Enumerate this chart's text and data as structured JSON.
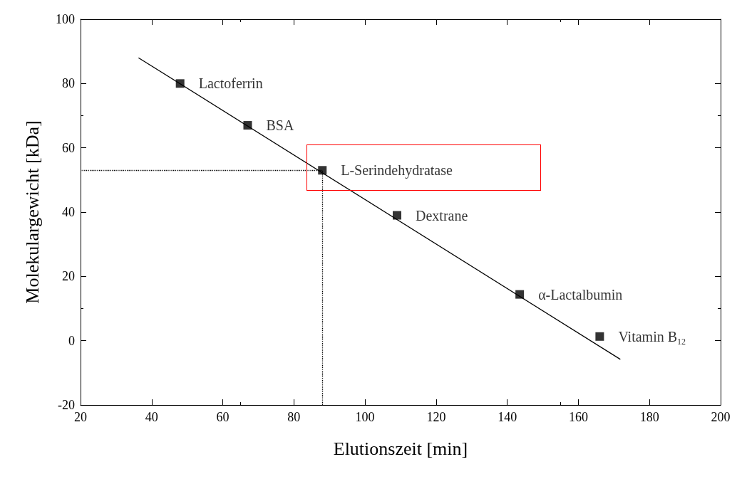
{
  "chart_data": {
    "type": "scatter",
    "xlabel": "Elutionszeit [min]",
    "ylabel": "Molekulargewicht [kDa]",
    "xlim": [
      20,
      200
    ],
    "xticks": [
      20,
      40,
      60,
      80,
      100,
      120,
      140,
      160,
      180,
      200
    ],
    "ylim": [
      -20,
      100
    ],
    "yticks": [
      -20,
      0,
      20,
      40,
      60,
      80,
      100
    ],
    "grid": false,
    "marker": "square",
    "series": [
      {
        "color": "#000000",
        "x": [
          48,
          67,
          88,
          109,
          143.5,
          166
        ],
        "values": [
          80,
          67,
          53,
          39,
          14.4,
          1.3
        ]
      },
      {
        "type": "line",
        "color": "#000000",
        "marker": "none",
        "line_style": "solid",
        "x": [
          36.3,
          171.8
        ],
        "values": [
          88,
          -5.8
        ]
      }
    ],
    "annotations": [
      {
        "text": "Lactoferrin",
        "x": 48,
        "y": 80
      },
      {
        "text": "BSA",
        "x": 67,
        "y": 67
      },
      {
        "text": "L-Serindehydratase",
        "x": 88,
        "y": 53
      },
      {
        "text": "Dextrane",
        "x": 109,
        "y": 39
      },
      {
        "text": "α-Lactalbumin",
        "x": 143.5,
        "y": 14.4
      },
      {
        "text": "Vitamin B$_{12}$",
        "x": 166,
        "y": 1.3
      }
    ],
    "ref_lines": [
      {
        "axis": "y",
        "value": 53,
        "line_style": "dotted",
        "color": "#000000"
      },
      {
        "axis": "x",
        "value": 88,
        "line_style": "dotted",
        "color": "#000000"
      }
    ]
  }
}
